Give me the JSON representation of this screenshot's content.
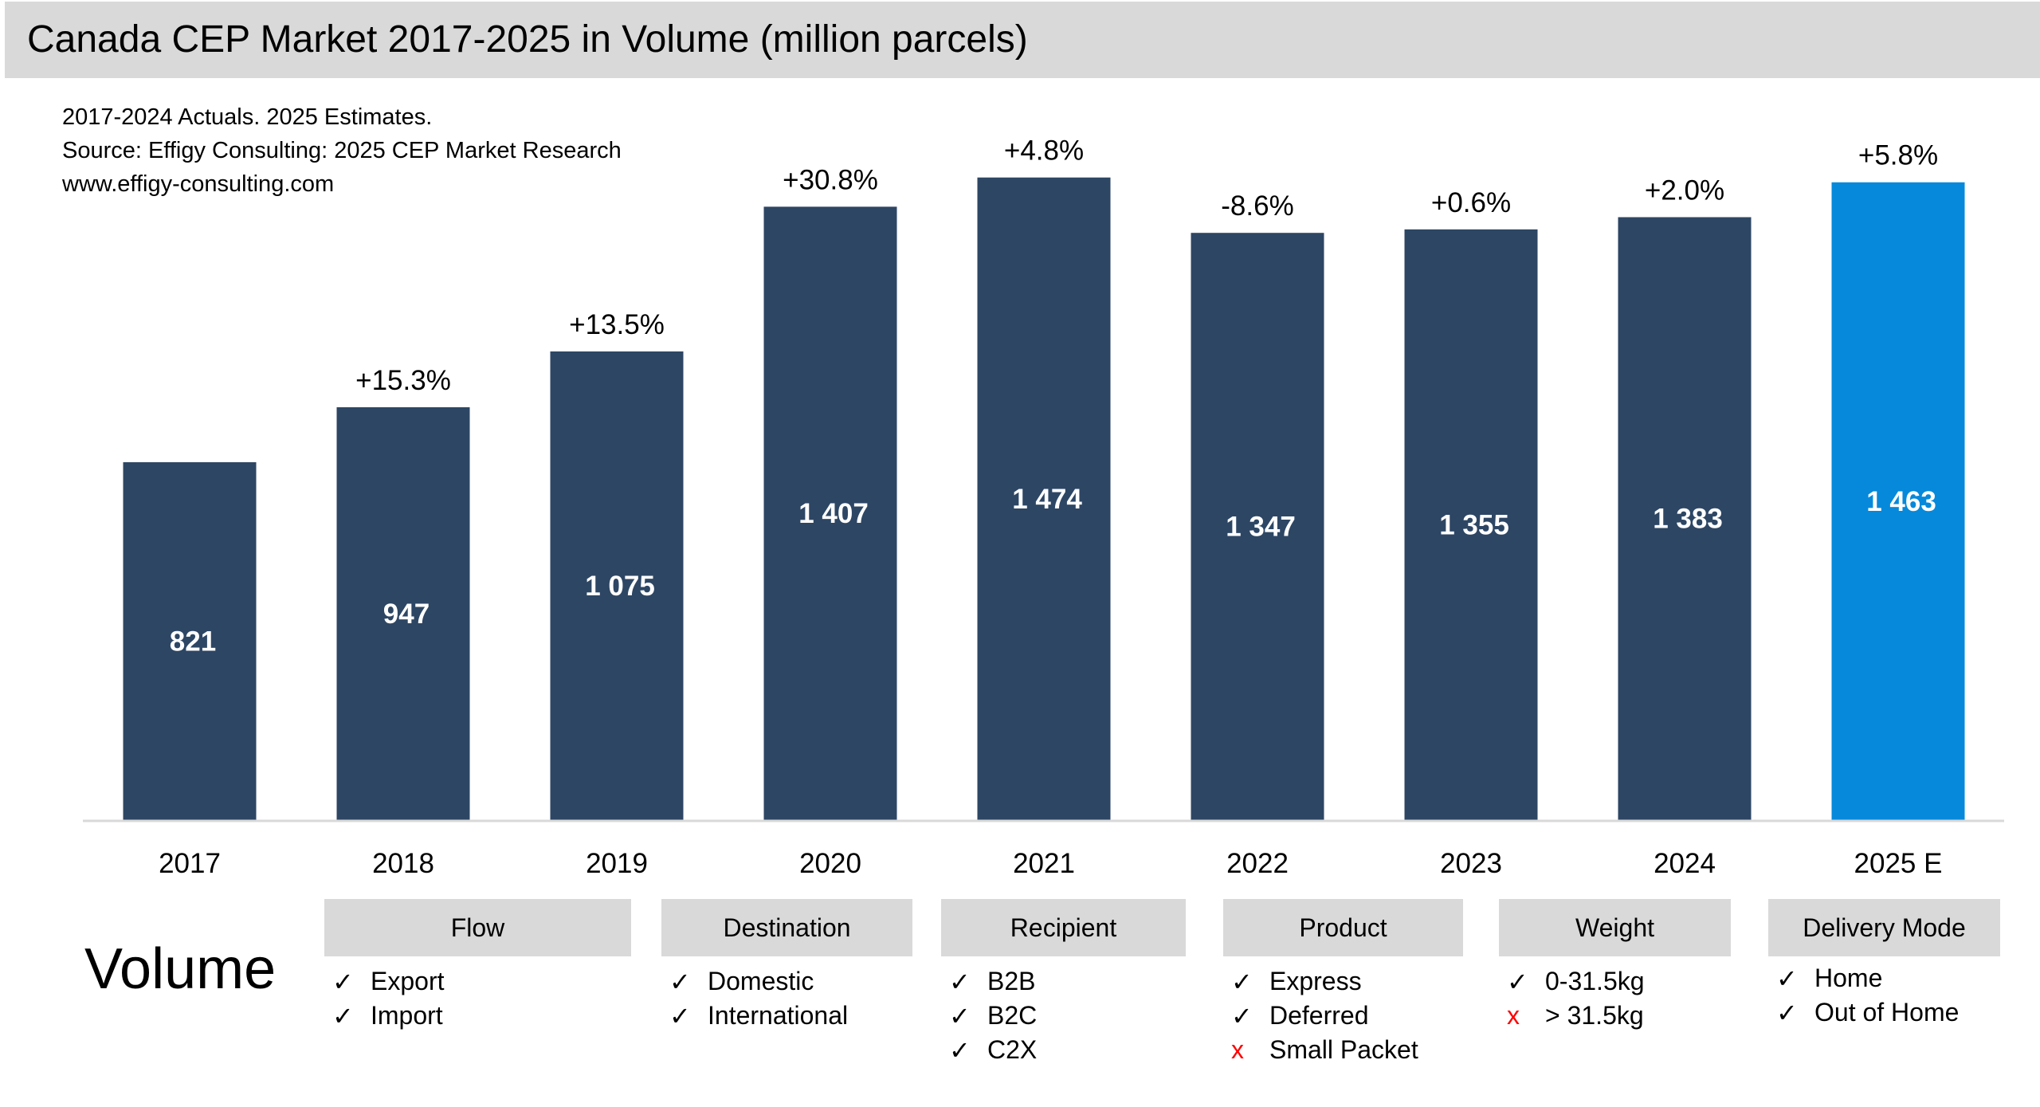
{
  "title": "Canada CEP Market 2017-2025 in Volume (million parcels)",
  "notes": [
    "2017-2024 Actuals. 2025 Estimates.",
    "Source: Effigy Consulting: 2025 CEP Market Research",
    "www.effigy-consulting.com"
  ],
  "chart_data": {
    "type": "bar",
    "title": "Canada CEP Market 2017-2025 in Volume (million parcels)",
    "categories": [
      "2017",
      "2018",
      "2019",
      "2020",
      "2021",
      "2022",
      "2023",
      "2024",
      "2025 E"
    ],
    "values": [
      821,
      947,
      1075,
      1407,
      1474,
      1347,
      1355,
      1383,
      1463
    ],
    "value_labels": [
      "821",
      "947",
      "1 075",
      "1 407",
      "1 474",
      "1 347",
      "1 355",
      "1 383",
      "1 463"
    ],
    "growth_labels": [
      "",
      "+15.3%",
      "+13.5%",
      "+30.8%",
      "+4.8%",
      "-8.6%",
      "+0.6%",
      "+2.0%",
      "+5.8%"
    ],
    "ylim": [
      0,
      1880
    ],
    "grid": false,
    "colors": {
      "actual": "#2d4664",
      "estimate": "#0689db"
    }
  },
  "segments": {
    "label": "Volume",
    "categories": [
      {
        "header": "Flow",
        "items": [
          {
            "mark": "check",
            "text": "Export"
          },
          {
            "mark": "check",
            "text": "Import"
          }
        ]
      },
      {
        "header": "Destination",
        "items": [
          {
            "mark": "check",
            "text": "Domestic"
          },
          {
            "mark": "check",
            "text": "International"
          }
        ]
      },
      {
        "header": "Recipient",
        "items": [
          {
            "mark": "check",
            "text": "B2B"
          },
          {
            "mark": "check",
            "text": "B2C"
          },
          {
            "mark": "check",
            "text": "C2X"
          }
        ]
      },
      {
        "header": "Product",
        "items": [
          {
            "mark": "check",
            "text": "Express"
          },
          {
            "mark": "check",
            "text": "Deferred"
          },
          {
            "mark": "cross",
            "text": "Small Packet"
          }
        ]
      },
      {
        "header": "Weight",
        "items": [
          {
            "mark": "check",
            "text": "0-31.5kg"
          },
          {
            "mark": "cross",
            "text": "> 31.5kg"
          }
        ]
      },
      {
        "header": "Delivery Mode",
        "items": [
          {
            "mark": "check",
            "text": "Home"
          },
          {
            "mark": "check",
            "text": "Out of Home"
          }
        ]
      }
    ]
  }
}
